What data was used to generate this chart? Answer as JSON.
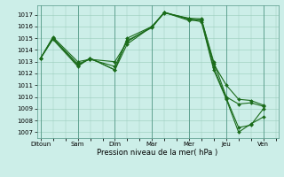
{
  "xlabel": "Pression niveau de la mer( hPa )",
  "bg_color": "#cceee8",
  "grid_color": "#99ccbb",
  "line_color": "#1a6b1a",
  "xtick_labels": [
    "Ditoun",
    "Sam",
    "Dim",
    "Mar",
    "Mer",
    "Jeu",
    "Ven"
  ],
  "xtick_positions": [
    0,
    1,
    2,
    3,
    4,
    5,
    6
  ],
  "ylim": [
    1006.5,
    1017.8
  ],
  "yticks": [
    1007,
    1008,
    1009,
    1010,
    1011,
    1012,
    1013,
    1014,
    1015,
    1016,
    1017
  ],
  "series": [
    {
      "x": [
        0.0,
        0.33,
        1.0,
        1.33,
        2.0,
        2.33,
        3.0,
        3.33,
        4.0,
        4.33,
        4.66,
        5.0,
        5.33,
        5.66,
        6.0
      ],
      "y": [
        1013.3,
        1015.1,
        1013.0,
        1013.2,
        1013.0,
        1014.7,
        1016.0,
        1017.15,
        1016.7,
        1016.65,
        1012.8,
        1011.0,
        1009.8,
        1009.7,
        1009.3
      ]
    },
    {
      "x": [
        0.0,
        0.33,
        1.0,
        1.33,
        2.0,
        2.33,
        3.0,
        3.33,
        4.0,
        4.33,
        4.66,
        5.0,
        5.33,
        5.66,
        6.0
      ],
      "y": [
        1013.3,
        1015.0,
        1012.8,
        1013.2,
        1012.6,
        1014.8,
        1015.9,
        1017.2,
        1016.5,
        1016.6,
        1013.0,
        1010.0,
        1009.4,
        1009.5,
        1009.2
      ]
    },
    {
      "x": [
        0.0,
        0.33,
        1.0,
        1.33,
        2.0,
        2.33,
        3.0,
        3.33,
        4.0,
        4.33,
        4.66,
        5.0,
        5.33,
        5.66,
        6.0
      ],
      "y": [
        1013.3,
        1015.0,
        1012.7,
        1013.3,
        1012.3,
        1014.5,
        1016.0,
        1017.2,
        1016.65,
        1016.5,
        1012.5,
        1009.9,
        1007.4,
        1007.6,
        1009.0
      ]
    },
    {
      "x": [
        0.0,
        0.33,
        1.0,
        1.33,
        2.0,
        2.33,
        3.0,
        3.33,
        4.0,
        4.33,
        4.66,
        5.0,
        5.33,
        5.66,
        6.0
      ],
      "y": [
        1013.3,
        1014.9,
        1012.6,
        1013.3,
        1012.3,
        1015.0,
        1016.0,
        1017.2,
        1016.6,
        1016.4,
        1012.3,
        1009.8,
        1007.0,
        1007.7,
        1008.3
      ]
    }
  ]
}
